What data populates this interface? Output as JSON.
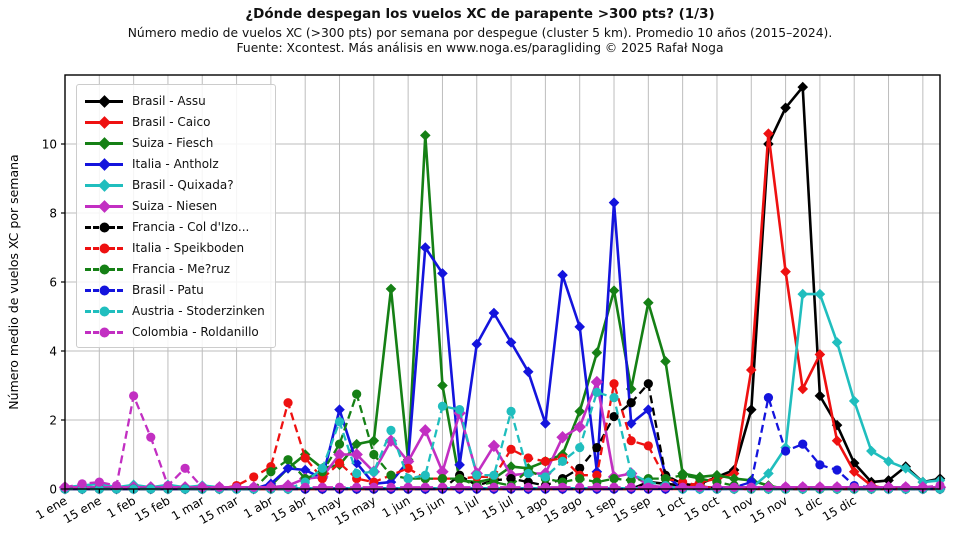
{
  "chart_data": {
    "type": "line",
    "title": "¿Dónde despegan los vuelos XC de parapente >300 pts? (1/3)",
    "subtitle": "Número medio de vuelos XC (>300 pts) por semana por despegue (cluster 5 km). Promedio 10 años (2015–2024).",
    "source": "Fuente: Xcontest. Más análisis en www.noga.es/paragliding © 2025 Rafał Noga",
    "ylabel": "Número medio de vuelos XC por semana",
    "xlabel": "",
    "ylim": [
      0,
      12.0
    ],
    "yticks": [
      0,
      2,
      4,
      6,
      8,
      10
    ],
    "grid": true,
    "legend_position": "upper-left",
    "x_unit": "semana (1-52)",
    "xtick_labels": [
      "1 ene",
      "15 ene",
      "1 feb",
      "15 feb",
      "1 mar",
      "15 mar",
      "1 abr",
      "15 abr",
      "1 may",
      "15 may",
      "1 jun",
      "15 jun",
      "1 jul",
      "15 jul",
      "1 ago",
      "15 ago",
      "1 sep",
      "15 sep",
      "1 oct",
      "15 oct",
      "1 nov",
      "15 nov",
      "1 dic",
      "15 dic"
    ],
    "xtick_weeks": [
      1,
      3,
      5,
      7,
      9,
      11,
      13,
      15,
      17,
      19,
      21,
      23,
      25,
      27,
      29,
      31,
      33,
      35,
      37,
      39,
      41,
      43,
      45,
      47
    ],
    "unlabeled_tick_weeks": [
      49,
      51
    ],
    "series": [
      {
        "name": "Brasil - Assu",
        "id": "brasil-assu",
        "color": "#000000",
        "style": "solid",
        "marker": "diamond",
        "values": [
          0,
          0,
          0,
          0,
          0,
          0,
          0,
          0,
          0,
          0,
          0,
          0,
          0,
          0,
          0,
          0,
          0,
          0,
          0,
          0,
          0,
          0,
          0,
          0,
          0,
          0,
          0,
          0,
          0,
          0,
          0,
          0,
          0,
          0,
          0.2,
          0.15,
          0.1,
          0.15,
          0.35,
          0.55,
          2.3,
          10.0,
          11.05,
          11.65,
          2.7,
          1.85,
          0.75,
          0.2,
          0.25,
          0.65,
          0.2,
          0.3
        ]
      },
      {
        "name": "Brasil - Caico",
        "id": "brasil-caico",
        "color": "#ee1111",
        "style": "solid",
        "marker": "diamond",
        "values": [
          0,
          0,
          0,
          0,
          0,
          0,
          0,
          0,
          0,
          0,
          0,
          0,
          0,
          0,
          0,
          0,
          0,
          0,
          0,
          0,
          0,
          0,
          0,
          0,
          0,
          0,
          0,
          0,
          0,
          0,
          0,
          0,
          0,
          0,
          0,
          0,
          0,
          0.2,
          0.3,
          0.45,
          3.45,
          10.3,
          6.3,
          2.9,
          3.9,
          1.4,
          0.5,
          0.1,
          0,
          0,
          0,
          0
        ]
      },
      {
        "name": "Suiza - Fiesch",
        "id": "suiza-fiesch",
        "color": "#158015",
        "style": "solid",
        "marker": "diamond",
        "values": [
          0,
          0,
          0,
          0,
          0,
          0,
          0,
          0,
          0,
          0,
          0,
          0,
          0.1,
          0.6,
          1.0,
          0.6,
          0.7,
          1.3,
          1.4,
          5.8,
          0.85,
          10.25,
          3.0,
          0.25,
          0.2,
          0.3,
          0.65,
          0.6,
          0.8,
          1.0,
          2.25,
          3.95,
          5.75,
          2.9,
          5.4,
          3.7,
          0.45,
          0.35,
          0.4,
          0.3,
          0.25,
          0.1,
          0,
          0,
          0,
          0,
          0,
          0,
          0,
          0,
          0,
          0
        ]
      },
      {
        "name": "Italia - Antholz",
        "id": "italia-antholz",
        "color": "#1414dd",
        "style": "solid",
        "marker": "diamond",
        "values": [
          0,
          0,
          0,
          0,
          0,
          0,
          0,
          0,
          0,
          0,
          0,
          0,
          0.15,
          0.6,
          0.55,
          0.3,
          2.3,
          0.75,
          0.15,
          0.2,
          0.8,
          7.0,
          6.25,
          0.7,
          4.2,
          5.1,
          4.25,
          3.4,
          1.9,
          6.2,
          4.7,
          0.5,
          8.3,
          1.9,
          2.3,
          0.4,
          0,
          0,
          0,
          0,
          0,
          0,
          0,
          0,
          0,
          0,
          0,
          0,
          0,
          0,
          0,
          0
        ]
      },
      {
        "name": "Brasil - Quixada?",
        "id": "brasil-quixada",
        "color": "#20bebe",
        "style": "solid",
        "marker": "diamond",
        "values": [
          0.05,
          0.1,
          0.15,
          0.05,
          0.12,
          0.05,
          0.12,
          0.05,
          0.1,
          0.05,
          0.02,
          0.02,
          0.02,
          0.02,
          0.02,
          0.02,
          0.02,
          0.02,
          0.02,
          0.02,
          0.02,
          0.02,
          0.02,
          0.02,
          0.02,
          0.02,
          0.02,
          0.02,
          0.02,
          0.02,
          0.02,
          0.02,
          0.02,
          0.02,
          0.02,
          0.02,
          0.02,
          0.02,
          0.02,
          0.02,
          0.02,
          0.45,
          1.2,
          5.65,
          5.65,
          4.25,
          2.55,
          1.1,
          0.8,
          0.6,
          0.2,
          0.25
        ]
      },
      {
        "name": "Suiza - Niesen",
        "id": "suiza-niesen",
        "color": "#c22fc2",
        "style": "solid",
        "marker": "diamond",
        "values": [
          0.05,
          0.05,
          0.05,
          0.05,
          0.05,
          0.05,
          0.05,
          0.05,
          0.05,
          0.05,
          0.05,
          0.05,
          0.05,
          0.1,
          0.3,
          0.35,
          1.0,
          1.0,
          0.5,
          1.4,
          0.8,
          1.7,
          0.5,
          2.2,
          0.45,
          1.25,
          0.4,
          0.45,
          0.45,
          1.5,
          1.8,
          3.1,
          0.35,
          0.45,
          0.1,
          0.05,
          0.05,
          0.05,
          0.05,
          0.05,
          0.05,
          0.05,
          0.05,
          0.05,
          0.05,
          0.05,
          0.05,
          0.05,
          0.05,
          0.05,
          0.05,
          0.05
        ]
      },
      {
        "name": "Francia - Col d'Izo...",
        "id": "francia-col-dizo",
        "color": "#000000",
        "style": "dashed",
        "marker": "circle",
        "values": [
          0,
          0,
          0,
          0,
          0,
          0,
          0,
          0,
          0,
          0,
          0,
          0,
          0,
          0,
          0,
          0,
          0,
          0,
          0,
          0,
          0,
          0,
          0,
          0.4,
          0.1,
          0.25,
          0.3,
          0.2,
          0.1,
          0.3,
          0.6,
          1.2,
          2.1,
          2.5,
          3.05,
          0.4,
          0.15,
          0.1,
          0,
          0,
          0,
          0,
          0,
          0,
          0,
          0,
          0,
          0,
          0,
          0,
          0,
          0
        ]
      },
      {
        "name": "Italia - Speikboden",
        "id": "italia-speikboden",
        "color": "#ee1111",
        "style": "dashed",
        "marker": "circle",
        "values": [
          0,
          0,
          0,
          0,
          0,
          0,
          0,
          0,
          0,
          0,
          0.1,
          0.35,
          0.65,
          2.5,
          0.9,
          0.3,
          0.75,
          0.3,
          0.2,
          0.4,
          0.6,
          0.3,
          0.3,
          0.3,
          0.35,
          0.35,
          1.15,
          0.9,
          0.8,
          0.9,
          0.4,
          0.4,
          3.05,
          1.4,
          1.25,
          0.3,
          0.2,
          0.1,
          0,
          0,
          0,
          0,
          0,
          0,
          0,
          0,
          0,
          0,
          0,
          0,
          0,
          0
        ]
      },
      {
        "name": "Francia - Me?ruz",
        "id": "francia-meruz",
        "color": "#158015",
        "style": "dashed",
        "marker": "circle",
        "values": [
          0,
          0,
          0,
          0,
          0,
          0,
          0,
          0,
          0,
          0,
          0,
          0,
          0.5,
          0.85,
          0.3,
          0.5,
          1.3,
          2.75,
          1.0,
          0.4,
          0.3,
          0.3,
          0.3,
          0.3,
          0.1,
          0.2,
          0.1,
          0.55,
          0.3,
          0.2,
          0.3,
          0.2,
          0.3,
          0.25,
          0.3,
          0.3,
          0.4,
          0.3,
          0.2,
          0.1,
          0,
          0,
          0,
          0,
          0,
          0,
          0,
          0,
          0,
          0,
          0,
          0
        ]
      },
      {
        "name": "Brasil - Patu",
        "id": "brasil-patu",
        "color": "#1414dd",
        "style": "dashed",
        "marker": "circle",
        "values": [
          0,
          0,
          0,
          0,
          0,
          0,
          0,
          0,
          0,
          0,
          0,
          0,
          0,
          0,
          0,
          0,
          0,
          0,
          0,
          0,
          0,
          0,
          0,
          0,
          0,
          0,
          0,
          0,
          0,
          0,
          0,
          0,
          0,
          0,
          0,
          0,
          0,
          0,
          0,
          0.05,
          0.2,
          2.65,
          1.1,
          1.3,
          0.7,
          0.55,
          0.1,
          0.05,
          0,
          0,
          0,
          0
        ]
      },
      {
        "name": "Austria - Stoderzinken",
        "id": "austria-stoderzinken",
        "color": "#20bebe",
        "style": "dashed",
        "marker": "circle",
        "values": [
          0,
          0,
          0,
          0,
          0,
          0,
          0,
          0,
          0,
          0,
          0,
          0,
          0,
          0,
          0.2,
          0.6,
          1.95,
          0.45,
          0.5,
          1.7,
          0.3,
          0.4,
          2.4,
          2.3,
          0.4,
          0.4,
          2.25,
          0.45,
          0.35,
          0.8,
          1.2,
          2.8,
          2.65,
          0.45,
          0.2,
          0.1,
          0,
          0,
          0,
          0,
          0,
          0,
          0,
          0,
          0,
          0,
          0,
          0,
          0,
          0,
          0,
          0
        ]
      },
      {
        "name": "Colombia - Roldanillo",
        "id": "colombia-roldanillo",
        "color": "#c22fc2",
        "style": "dashed",
        "marker": "circle",
        "values": [
          0.05,
          0.15,
          0.2,
          0.1,
          2.7,
          1.5,
          0.1,
          0.6,
          0.05,
          0.05,
          0.05,
          0.05,
          0.05,
          0.05,
          0.05,
          0.05,
          0.05,
          0.05,
          0.05,
          0.05,
          0.05,
          0.05,
          0.05,
          0.05,
          0.05,
          0.05,
          0.05,
          0.05,
          0.05,
          0.05,
          0.05,
          0.05,
          0.05,
          0.05,
          0.05,
          0.05,
          0.05,
          0.05,
          0.05,
          0.05,
          0.05,
          0.05,
          0.05,
          0.05,
          0.05,
          0.05,
          0.05,
          0.05,
          0.05,
          0.05,
          0.05,
          0.1
        ]
      }
    ]
  }
}
